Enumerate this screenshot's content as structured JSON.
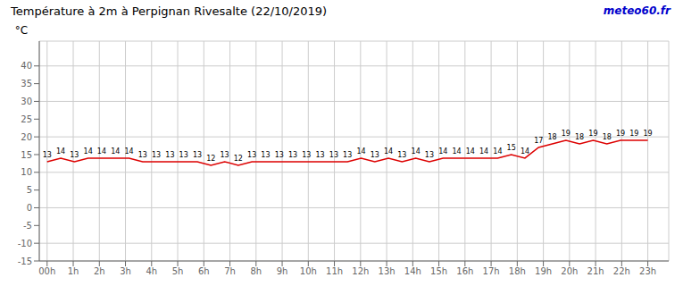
{
  "chart_data": {
    "type": "line",
    "title": "Température à 2m à Perpignan Rivesalte (22/10/2019)",
    "ylabel": "°C",
    "annotations": [
      "meteo60.fr"
    ],
    "color": "#dd0000",
    "grid": true,
    "data_labels": true,
    "x": [
      0,
      0.5227272727272727,
      1.0454545454545454,
      1.5681818181818181,
      2.090909090909091,
      2.6136363636363638,
      3.1363636363636362,
      3.659090909090909,
      4.181818181818182,
      4.704545454545454,
      5.2272727272727275,
      5.75,
      6.2727272727272725,
      6.795454545454545,
      7.318181818181818,
      7.840909090909091,
      8.363636363636363,
      8.886363636363637,
      9.409090909090908,
      9.931818181818182,
      10.454545454545455,
      10.977272727272727,
      11.5,
      12.022727272727273,
      12.545454545454545,
      13.068181818181818,
      13.590909090909092,
      14.113636363636363,
      14.636363636363637,
      15.159090909090908,
      15.681818181818182,
      16.204545454545453,
      16.727272727272727,
      17.25,
      17.772727272727273,
      18.295454545454547,
      18.818181818181817,
      19.34090909090909,
      19.863636363636363,
      20.386363636363637,
      20.90909090909091,
      21.431818181818183,
      21.954545454545453,
      22.477272727272727,
      23
    ],
    "values": [
      13,
      14,
      13,
      14,
      14,
      14,
      14,
      13,
      13,
      13,
      13,
      13,
      12,
      13,
      12,
      13,
      13,
      13,
      13,
      13,
      13,
      13,
      13,
      14,
      13,
      14,
      13,
      14,
      13,
      14,
      14,
      14,
      14,
      14,
      15,
      14,
      17,
      18,
      19,
      18,
      19,
      18,
      19,
      19,
      19
    ],
    "xlim": [
      -0.3,
      23.8
    ],
    "xticks": [
      {
        "value": 0,
        "label": "00h"
      },
      {
        "value": 1,
        "label": "1h"
      },
      {
        "value": 2,
        "label": "2h"
      },
      {
        "value": 3,
        "label": "3h"
      },
      {
        "value": 4,
        "label": "4h"
      },
      {
        "value": 5,
        "label": "5h"
      },
      {
        "value": 6,
        "label": "6h"
      },
      {
        "value": 7,
        "label": "7h"
      },
      {
        "value": 8,
        "label": "8h"
      },
      {
        "value": 9,
        "label": "9h"
      },
      {
        "value": 10,
        "label": "10h"
      },
      {
        "value": 11,
        "label": "11h"
      },
      {
        "value": 12,
        "label": "12h"
      },
      {
        "value": 13,
        "label": "13h"
      },
      {
        "value": 14,
        "label": "14h"
      },
      {
        "value": 15,
        "label": "15h"
      },
      {
        "value": 16,
        "label": "16h"
      },
      {
        "value": 17,
        "label": "17h"
      },
      {
        "value": 18,
        "label": "18h"
      },
      {
        "value": 19,
        "label": "19h"
      },
      {
        "value": 20,
        "label": "20h"
      },
      {
        "value": 21,
        "label": "21h"
      },
      {
        "value": 22,
        "label": "22h"
      },
      {
        "value": 23,
        "label": "23h"
      }
    ],
    "ylim": [
      -15,
      47
    ],
    "yticks": [
      -15,
      -10,
      -5,
      0,
      5,
      10,
      15,
      20,
      25,
      30,
      35,
      40
    ]
  }
}
